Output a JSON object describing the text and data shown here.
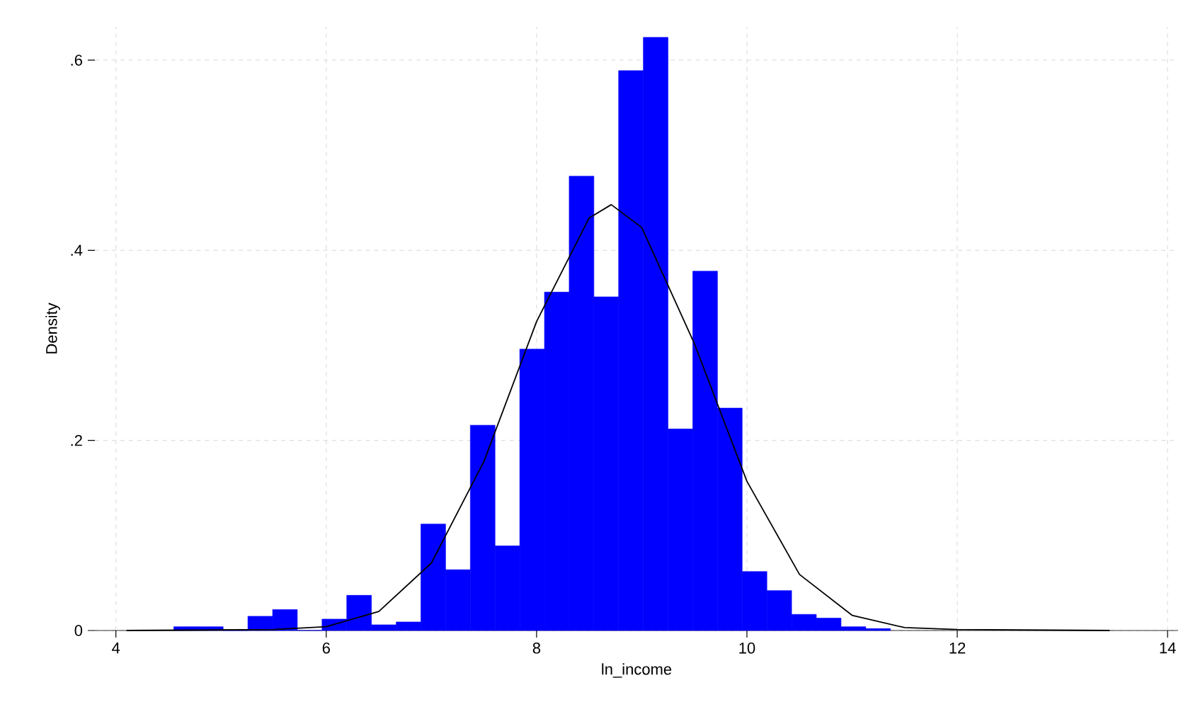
{
  "chart_data": {
    "type": "histogram",
    "xlabel": "ln_income",
    "ylabel": "Density",
    "xlim": [
      3.8,
      14.1
    ],
    "ylim": [
      0,
      0.635
    ],
    "xticks": [
      4,
      6,
      8,
      10,
      12,
      14
    ],
    "yticks": [
      0,
      {
        "value": 0.2,
        "label": ".2"
      },
      {
        "value": 0.4,
        "label": ".4"
      },
      {
        "value": 0.6,
        "label": ".6"
      }
    ],
    "grid": true,
    "series": [
      {
        "color": "#0000ff",
        "bins": [
          4.55,
          4.785,
          5.02,
          5.255,
          5.49,
          5.725,
          5.96,
          6.195,
          6.43,
          6.665,
          6.9,
          7.135,
          7.37,
          7.605,
          7.84,
          8.075,
          8.31,
          8.545,
          8.78,
          9.015,
          9.25,
          9.485,
          9.72,
          9.955,
          10.19,
          10.425,
          10.66,
          10.895,
          11.13,
          11.365
        ],
        "values": [
          0.004,
          0.004,
          0,
          0.015,
          0.022,
          0,
          0.012,
          0.037,
          0.006,
          0.009,
          0.112,
          0.064,
          0.216,
          0.089,
          0.296,
          0.356,
          0.478,
          0.351,
          0.589,
          0.624,
          0.212,
          0.378,
          0.234,
          0.062,
          0.042,
          0.017,
          0.013,
          0.004,
          0.002
        ]
      },
      {
        "type": "line",
        "color": "#000000",
        "x": [
          4.1,
          5.5,
          6,
          6.5,
          7,
          7.5,
          8,
          8.5,
          8.71,
          9,
          9.5,
          10,
          10.5,
          11,
          11.5,
          12,
          13.45
        ],
        "values": [
          0,
          0.001,
          0.004,
          0.02,
          0.071,
          0.178,
          0.325,
          0.434,
          0.448,
          0.424,
          0.302,
          0.157,
          0.059,
          0.016,
          0.003,
          0.001,
          0
        ]
      }
    ]
  }
}
